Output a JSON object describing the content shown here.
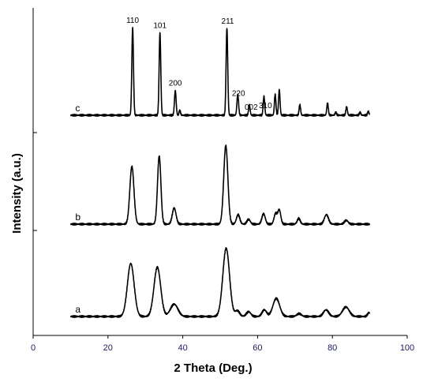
{
  "chart_data": {
    "type": "line",
    "xlabel": "2 Theta (Deg.)",
    "ylabel": "Intensity (a.u.)",
    "xlim": [
      0,
      100
    ],
    "xticks": [
      0,
      20,
      40,
      60,
      80,
      100
    ],
    "y_tick_labels_shown": false,
    "grid": false,
    "series": [
      {
        "name": "a",
        "baseline": 0,
        "peaks": [
          {
            "x": 26.1,
            "h": 0.56,
            "w": 0.9
          },
          {
            "x": 33.2,
            "h": 0.52,
            "w": 0.9
          },
          {
            "x": 37.7,
            "h": 0.13,
            "w": 1.0
          },
          {
            "x": 51.6,
            "h": 0.72,
            "w": 0.9
          },
          {
            "x": 54.6,
            "h": 0.06,
            "w": 0.6
          },
          {
            "x": 57.6,
            "h": 0.05,
            "w": 0.6
          },
          {
            "x": 61.8,
            "h": 0.07,
            "w": 0.6
          },
          {
            "x": 65.0,
            "h": 0.19,
            "w": 0.9
          },
          {
            "x": 71.1,
            "h": 0.03,
            "w": 0.6
          },
          {
            "x": 78.3,
            "h": 0.07,
            "w": 0.7
          },
          {
            "x": 83.6,
            "h": 0.1,
            "w": 0.9
          },
          {
            "x": 89.8,
            "h": 0.04,
            "w": 0.4
          }
        ]
      },
      {
        "name": "b",
        "baseline": 1,
        "peaks": [
          {
            "x": 26.4,
            "h": 0.61,
            "w": 0.55
          },
          {
            "x": 33.7,
            "h": 0.72,
            "w": 0.45
          },
          {
            "x": 37.7,
            "h": 0.17,
            "w": 0.5
          },
          {
            "x": 51.5,
            "h": 0.83,
            "w": 0.55
          },
          {
            "x": 54.8,
            "h": 0.1,
            "w": 0.45
          },
          {
            "x": 57.6,
            "h": 0.05,
            "w": 0.45
          },
          {
            "x": 61.6,
            "h": 0.11,
            "w": 0.45
          },
          {
            "x": 64.8,
            "h": 0.11,
            "w": 0.4
          },
          {
            "x": 65.8,
            "h": 0.15,
            "w": 0.4
          },
          {
            "x": 71.0,
            "h": 0.06,
            "w": 0.4
          },
          {
            "x": 78.4,
            "h": 0.1,
            "w": 0.55
          },
          {
            "x": 83.7,
            "h": 0.04,
            "w": 0.5
          }
        ]
      },
      {
        "name": "c",
        "baseline": 2,
        "peaks": [
          {
            "x": 26.6,
            "h": 0.92,
            "w": 0.22
          },
          {
            "x": 33.9,
            "h": 0.87,
            "w": 0.22
          },
          {
            "x": 38.0,
            "h": 0.26,
            "w": 0.22
          },
          {
            "x": 39.2,
            "h": 0.05,
            "w": 0.2
          },
          {
            "x": 51.8,
            "h": 0.92,
            "w": 0.22
          },
          {
            "x": 54.7,
            "h": 0.22,
            "w": 0.22
          },
          {
            "x": 57.8,
            "h": 0.11,
            "w": 0.2
          },
          {
            "x": 61.7,
            "h": 0.2,
            "w": 0.2
          },
          {
            "x": 64.7,
            "h": 0.22,
            "w": 0.2
          },
          {
            "x": 65.8,
            "h": 0.27,
            "w": 0.2
          },
          {
            "x": 71.3,
            "h": 0.11,
            "w": 0.2
          },
          {
            "x": 78.7,
            "h": 0.13,
            "w": 0.2
          },
          {
            "x": 80.9,
            "h": 0.03,
            "w": 0.2
          },
          {
            "x": 83.8,
            "h": 0.09,
            "w": 0.2
          },
          {
            "x": 87.4,
            "h": 0.03,
            "w": 0.2
          },
          {
            "x": 89.6,
            "h": 0.04,
            "w": 0.2
          }
        ]
      }
    ],
    "annotations": [
      {
        "text": "110",
        "x": 26.6,
        "series": "c"
      },
      {
        "text": "101",
        "x": 33.9,
        "series": "c"
      },
      {
        "text": "200",
        "x": 38.0,
        "series": "c"
      },
      {
        "text": "211",
        "x": 51.8,
        "series": "c"
      },
      {
        "text": "220",
        "x": 54.9,
        "series": "c"
      },
      {
        "text": "002",
        "x": 58.3,
        "series": "c"
      },
      {
        "text": "310",
        "x": 62.1,
        "series": "c"
      }
    ],
    "trace_range": [
      10,
      90
    ]
  }
}
